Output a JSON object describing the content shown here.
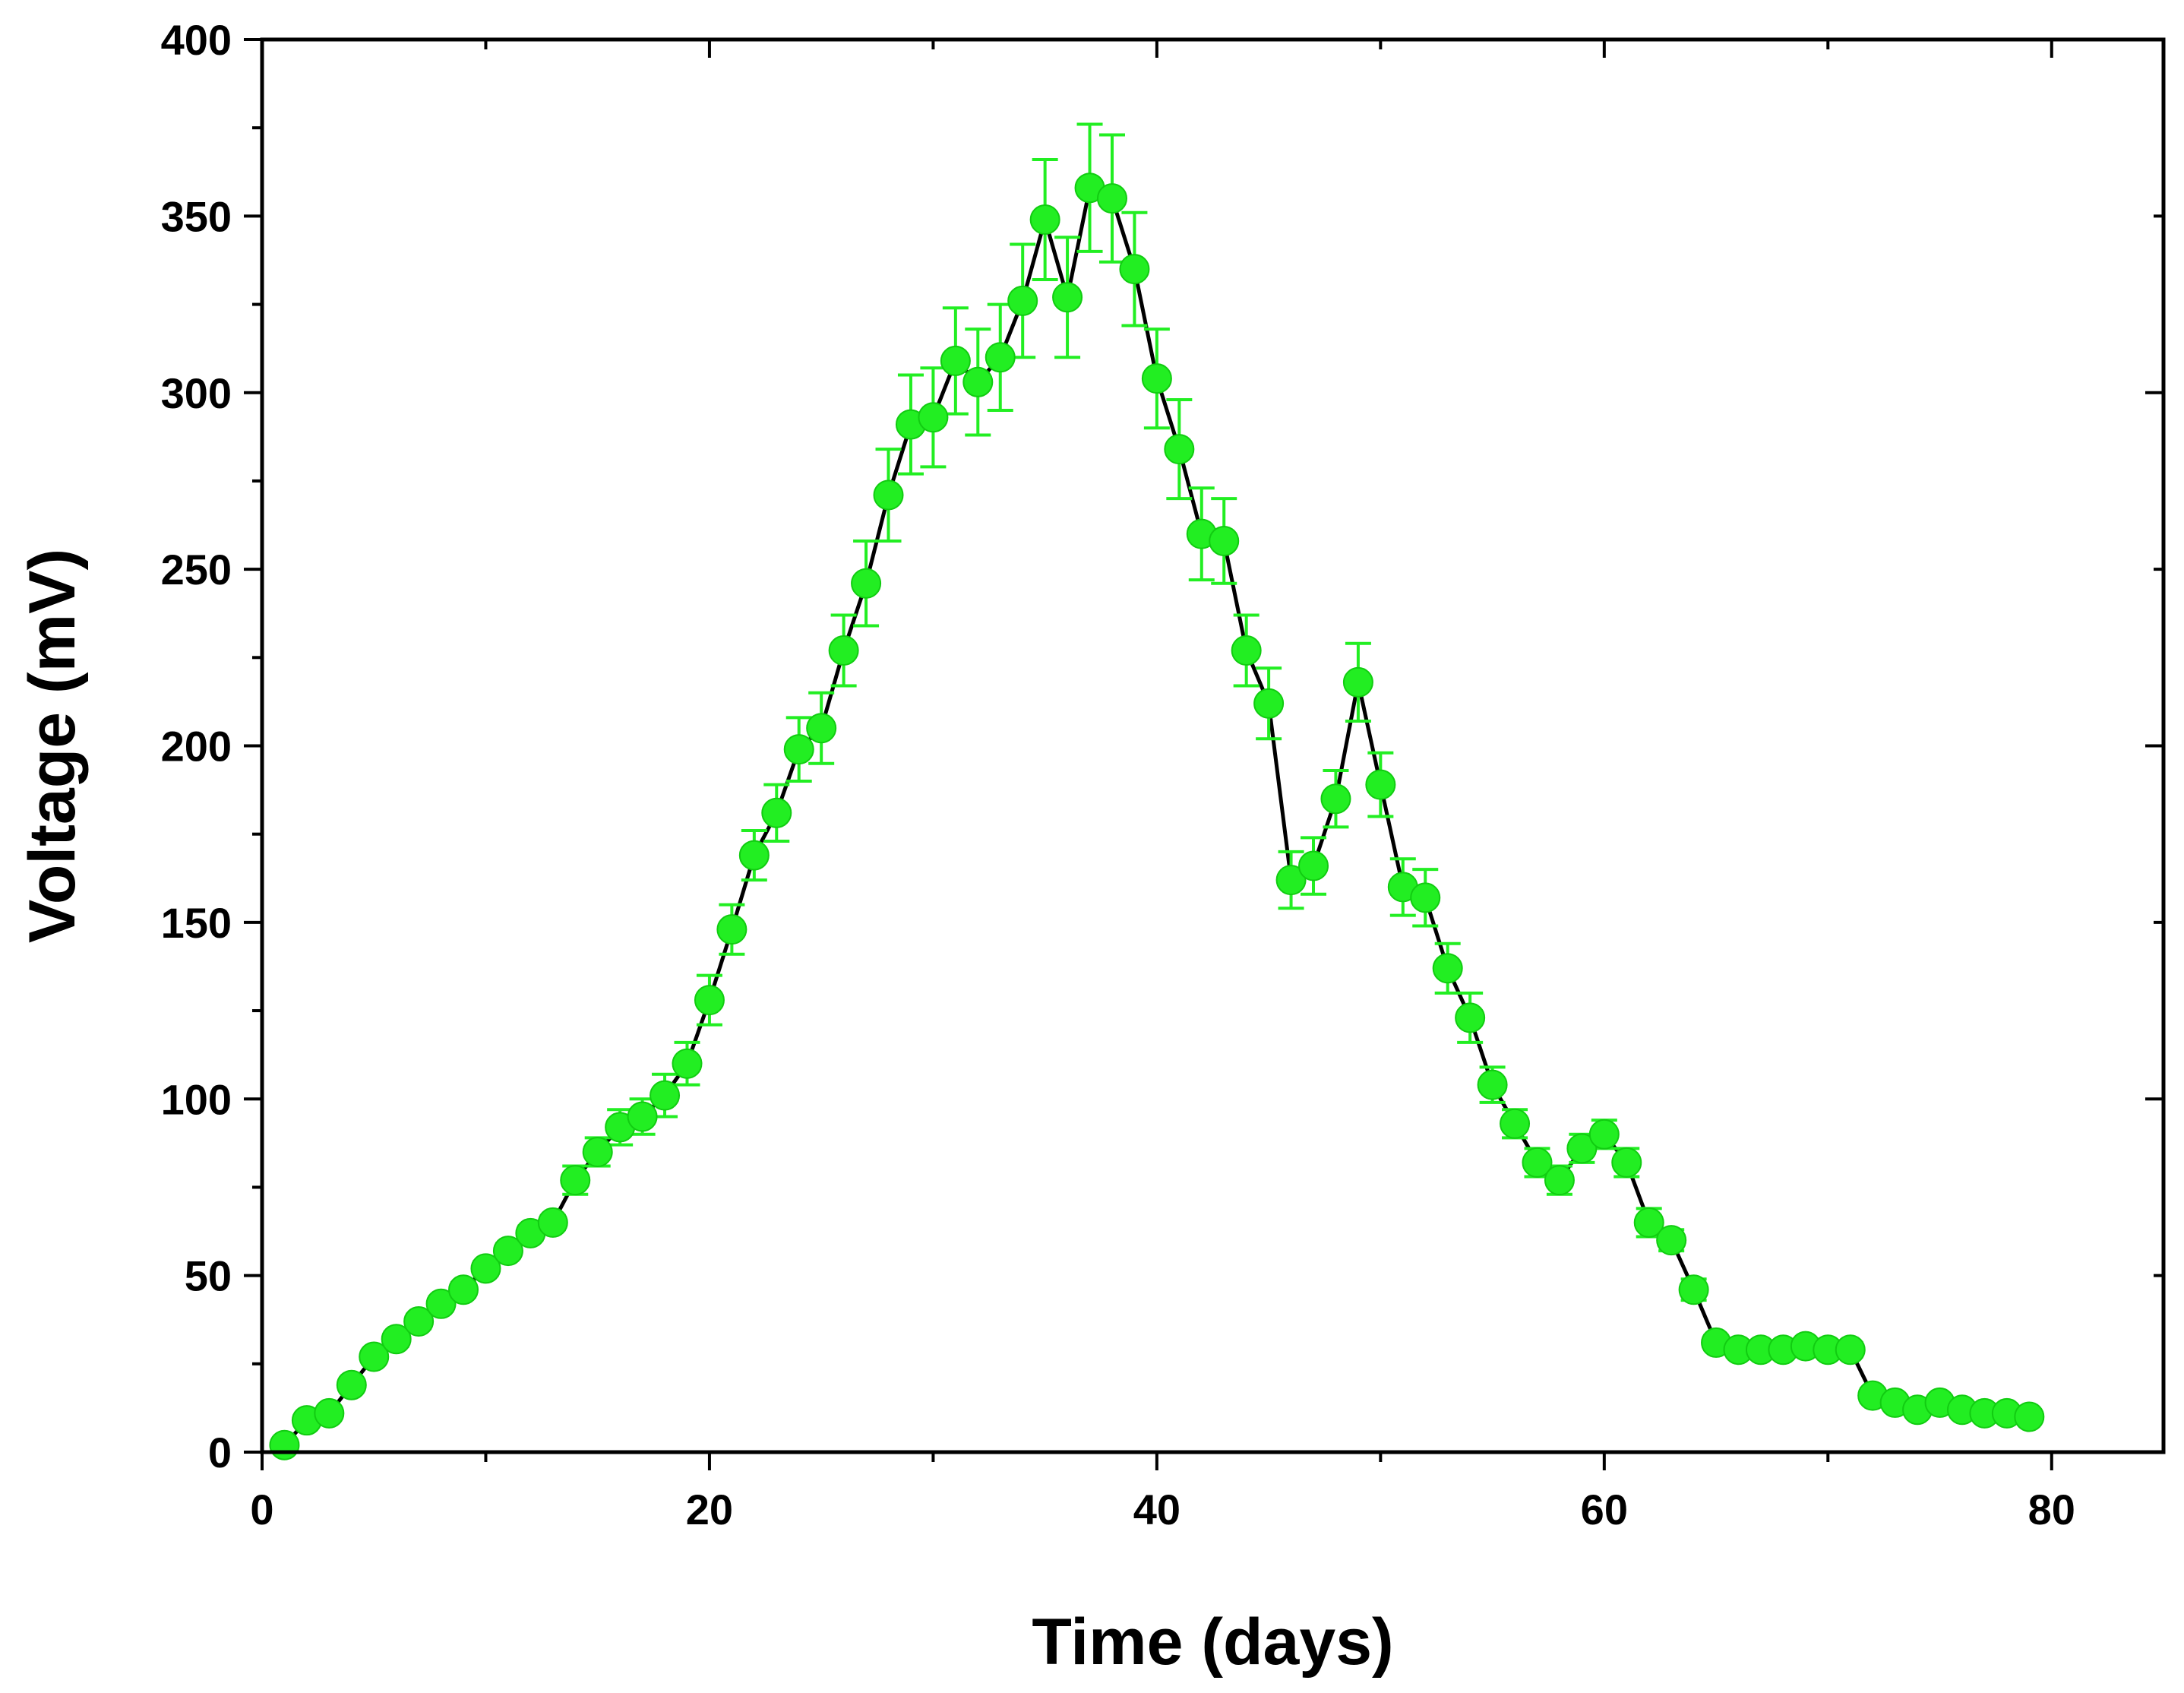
{
  "chart_data": {
    "type": "scatter",
    "xlabel": "Time (days)",
    "ylabel": "Voltage (mV)",
    "xlim": [
      0,
      85
    ],
    "ylim": [
      0,
      400
    ],
    "xticks": [
      0,
      20,
      40,
      60,
      80
    ],
    "yticks": [
      0,
      50,
      100,
      150,
      200,
      250,
      300,
      350,
      400
    ],
    "grid": false,
    "colors": {
      "marker": "#22ee22",
      "error_bar": "#22ee22",
      "line": "#000000",
      "axis": "#000000"
    },
    "series": [
      {
        "x": [
          1,
          2,
          3,
          4,
          5,
          6,
          7,
          8,
          9,
          10,
          11,
          12,
          13,
          14,
          15,
          16,
          17,
          18,
          19,
          20,
          21,
          22,
          23,
          24,
          25,
          26,
          27,
          28,
          29,
          30,
          31,
          32,
          33,
          34,
          35,
          36,
          37,
          38,
          39,
          40,
          41,
          42,
          43,
          44,
          45,
          46,
          47,
          48,
          49,
          50,
          51,
          52,
          53,
          54,
          55,
          56,
          57,
          58,
          59,
          60,
          61,
          62,
          63,
          64,
          65,
          66,
          67,
          68,
          69,
          70,
          71,
          72,
          73,
          74,
          75,
          76,
          77,
          78,
          79
        ],
        "y": [
          2,
          9,
          11,
          19,
          27,
          32,
          37,
          42,
          46,
          52,
          57,
          62,
          65,
          77,
          85,
          92,
          95,
          101,
          110,
          128,
          148,
          169,
          181,
          199,
          205,
          227,
          246,
          271,
          291,
          293,
          309,
          303,
          310,
          326,
          349,
          327,
          358,
          355,
          335,
          304,
          284,
          260,
          258,
          227,
          212,
          162,
          166,
          185,
          218,
          189,
          160,
          157,
          137,
          123,
          104,
          93,
          82,
          77,
          86,
          90,
          82,
          65,
          60,
          46,
          31,
          29,
          29,
          29,
          30,
          29,
          29,
          16,
          14,
          12,
          14,
          12,
          11,
          11,
          10
        ],
        "error": [
          0,
          1,
          1,
          1,
          1,
          2,
          2,
          2,
          2,
          2,
          2,
          2,
          2,
          4,
          4,
          5,
          5,
          6,
          6,
          7,
          7,
          7,
          8,
          9,
          10,
          10,
          12,
          13,
          14,
          14,
          15,
          15,
          15,
          16,
          17,
          17,
          18,
          18,
          16,
          14,
          14,
          13,
          12,
          10,
          10,
          8,
          8,
          8,
          11,
          9,
          8,
          8,
          7,
          7,
          5,
          4,
          4,
          4,
          4,
          4,
          4,
          4,
          3,
          3,
          2,
          2,
          2,
          2,
          2,
          2,
          2,
          2,
          1,
          1,
          1,
          1,
          1,
          1,
          1
        ]
      }
    ]
  }
}
